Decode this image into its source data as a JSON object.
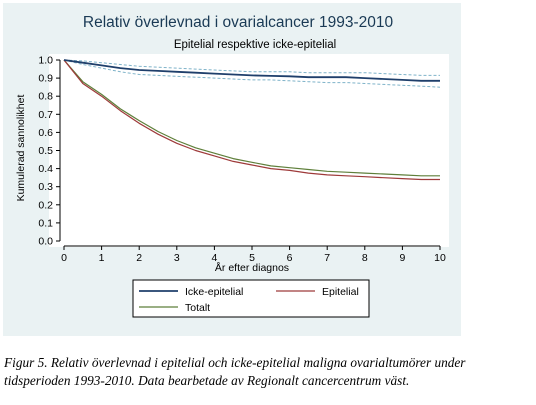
{
  "chart_data": {
    "type": "line",
    "title": "Relativ överlevnad i ovarialcancer 1993-2010",
    "subtitle": "Epitelial respektive icke-epitelial",
    "xlabel": "År efter diagnos",
    "ylabel": "Kumulerad sannolikhet",
    "xlim": [
      0,
      10
    ],
    "ylim": [
      0,
      1.0
    ],
    "xticks": [
      0,
      1,
      2,
      3,
      4,
      5,
      6,
      7,
      8,
      9,
      10
    ],
    "yticks": [
      0.0,
      0.1,
      0.2,
      0.3,
      0.4,
      0.5,
      0.6,
      0.7,
      0.8,
      0.9,
      1.0
    ],
    "ytick_labels": [
      "0.0",
      "0.1",
      "0.2",
      "0.3",
      "0.4",
      "0.5",
      "0.6",
      "0.7",
      "0.8",
      "0.9",
      "1.0"
    ],
    "grid": false,
    "legend_position": "bottom",
    "series": [
      {
        "name": "Icke-epitelial",
        "color": "#1f3f6b",
        "x": [
          0,
          0.5,
          1,
          1.5,
          2,
          2.5,
          3,
          3.5,
          4,
          4.5,
          5,
          5.5,
          6,
          6.5,
          7,
          7.5,
          8,
          8.5,
          9,
          9.5,
          10
        ],
        "y": [
          1.0,
          0.985,
          0.97,
          0.955,
          0.945,
          0.94,
          0.935,
          0.93,
          0.925,
          0.92,
          0.915,
          0.912,
          0.91,
          0.905,
          0.905,
          0.905,
          0.9,
          0.895,
          0.89,
          0.885,
          0.885
        ],
        "ci_upper": [
          1.0,
          0.995,
          0.985,
          0.975,
          0.965,
          0.96,
          0.955,
          0.95,
          0.945,
          0.94,
          0.935,
          0.935,
          0.935,
          0.93,
          0.93,
          0.93,
          0.93,
          0.925,
          0.92,
          0.915,
          0.915
        ],
        "ci_lower": [
          1.0,
          0.975,
          0.955,
          0.935,
          0.92,
          0.915,
          0.91,
          0.905,
          0.9,
          0.895,
          0.89,
          0.89,
          0.885,
          0.88,
          0.875,
          0.875,
          0.87,
          0.865,
          0.86,
          0.855,
          0.85
        ]
      },
      {
        "name": "Epitelial",
        "color": "#9e3a3a",
        "x": [
          0,
          0.5,
          1,
          1.5,
          2,
          2.5,
          3,
          3.5,
          4,
          4.5,
          5,
          5.5,
          6,
          6.5,
          7,
          7.5,
          8,
          8.5,
          9,
          9.5,
          10
        ],
        "y": [
          1.0,
          0.87,
          0.8,
          0.72,
          0.65,
          0.59,
          0.54,
          0.5,
          0.47,
          0.44,
          0.42,
          0.4,
          0.39,
          0.375,
          0.365,
          0.36,
          0.355,
          0.35,
          0.345,
          0.34,
          0.34
        ]
      },
      {
        "name": "Totalt",
        "color": "#5e7f3a",
        "x": [
          0,
          0.5,
          1,
          1.5,
          2,
          2.5,
          3,
          3.5,
          4,
          4.5,
          5,
          5.5,
          6,
          6.5,
          7,
          7.5,
          8,
          8.5,
          9,
          9.5,
          10
        ],
        "y": [
          1.0,
          0.88,
          0.81,
          0.73,
          0.665,
          0.605,
          0.555,
          0.515,
          0.485,
          0.455,
          0.435,
          0.415,
          0.405,
          0.395,
          0.385,
          0.38,
          0.375,
          0.37,
          0.365,
          0.36,
          0.36
        ]
      }
    ]
  },
  "legend": [
    {
      "label": "Icke-epitelial",
      "color": "#1f3f6b"
    },
    {
      "label": "Epitelial",
      "color": "#9e3a3a"
    },
    {
      "label": "Totalt",
      "color": "#5e7f3a"
    }
  ],
  "colors": {
    "background": "#eaf2f3",
    "plot_area": "#ffffff",
    "ci_band": "#7fb3c9"
  },
  "caption": "Figur 5. Relativ överlevnad i epitelial och icke-epitelial maligna ovarialtumörer under tidsperioden 1993-2010. Data bearbetade av Regionalt cancercentrum väst."
}
